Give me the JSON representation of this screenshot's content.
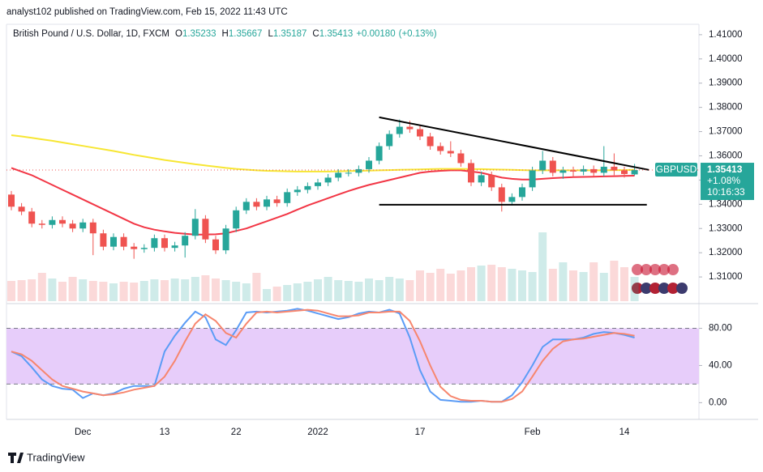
{
  "header": {
    "publisher": "analyst102 published on TradingView.com, Feb 15, 2022 11:43 UTC",
    "footer": "TradingView"
  },
  "chart_data": {
    "type": "candlestick",
    "title": "British Pound / U.S. Dollar, 1D, FXCM",
    "symbol": "GBPUSD",
    "ohlc_labels": [
      "O",
      "H",
      "L",
      "C"
    ],
    "change": "+0.00180",
    "change_pct": "(+0.13%)",
    "tag_change": "+1.08%",
    "countdown": "10:16:33",
    "categories": [
      null,
      null,
      null,
      null,
      null,
      null,
      null,
      "Dec",
      null,
      null,
      null,
      null,
      null,
      null,
      null,
      "13",
      null,
      null,
      null,
      null,
      null,
      null,
      "22",
      null,
      null,
      null,
      null,
      null,
      null,
      null,
      "2022",
      null,
      null,
      null,
      null,
      null,
      null,
      null,
      null,
      null,
      "17",
      null,
      null,
      null,
      null,
      null,
      null,
      null,
      null,
      null,
      null,
      "Feb",
      null,
      null,
      null,
      null,
      null,
      null,
      null,
      null,
      "14",
      null
    ],
    "open": [
      1.344,
      1.339,
      1.337,
      1.332,
      1.3315,
      1.3335,
      1.332,
      1.33,
      1.3325,
      1.328,
      1.3225,
      1.3265,
      1.3225,
      1.3215,
      1.322,
      1.326,
      1.322,
      1.323,
      1.327,
      1.334,
      1.3255,
      1.321,
      1.33,
      1.3375,
      1.341,
      1.339,
      1.342,
      1.3405,
      1.345,
      1.346,
      1.3475,
      1.349,
      1.351,
      1.353,
      1.353,
      1.3545,
      1.358,
      1.364,
      1.369,
      1.372,
      1.371,
      1.368,
      1.364,
      1.362,
      1.361,
      1.357,
      1.349,
      1.352,
      1.347,
      1.341,
      1.343,
      1.347,
      1.354,
      1.358,
      1.353,
      1.354,
      1.3535,
      1.3545,
      1.353,
      1.3555,
      1.354,
      1.35233
    ],
    "high": [
      1.3455,
      1.3405,
      1.3385,
      1.3335,
      1.335,
      1.335,
      1.3335,
      1.334,
      1.334,
      1.3295,
      1.328,
      1.328,
      1.324,
      1.3235,
      1.3275,
      1.3275,
      1.3245,
      1.3285,
      1.338,
      1.3355,
      1.327,
      1.3315,
      1.339,
      1.3425,
      1.3425,
      1.3435,
      1.3435,
      1.3465,
      1.3475,
      1.349,
      1.3505,
      1.3525,
      1.3545,
      1.3545,
      1.356,
      1.3595,
      1.3655,
      1.3705,
      1.375,
      1.3745,
      1.3725,
      1.3695,
      1.3655,
      1.366,
      1.3625,
      1.3585,
      1.3535,
      1.3535,
      1.3485,
      1.3445,
      1.3485,
      1.3555,
      1.362,
      1.3595,
      1.3555,
      1.3555,
      1.356,
      1.356,
      1.364,
      1.361,
      1.3555,
      1.35667
    ],
    "low": [
      1.3375,
      1.3355,
      1.3305,
      1.33,
      1.33,
      1.3305,
      1.3285,
      1.3285,
      1.319,
      1.321,
      1.321,
      1.321,
      1.3175,
      1.32,
      1.3205,
      1.3205,
      1.3205,
      1.318,
      1.3255,
      1.324,
      1.3195,
      1.3195,
      1.3285,
      1.336,
      1.3375,
      1.3375,
      1.339,
      1.339,
      1.3435,
      1.3445,
      1.346,
      1.3475,
      1.3495,
      1.3515,
      1.3515,
      1.353,
      1.3565,
      1.3625,
      1.3675,
      1.3695,
      1.3665,
      1.3625,
      1.3605,
      1.3595,
      1.3555,
      1.3475,
      1.3475,
      1.3455,
      1.337,
      1.3395,
      1.3415,
      1.3455,
      1.3525,
      1.3515,
      1.3505,
      1.351,
      1.352,
      1.3515,
      1.3515,
      1.352,
      1.351,
      1.35187
    ],
    "close": [
      1.339,
      1.337,
      1.332,
      1.3315,
      1.3335,
      1.332,
      1.33,
      1.3325,
      1.328,
      1.3225,
      1.3265,
      1.3225,
      1.3215,
      1.322,
      1.326,
      1.322,
      1.323,
      1.327,
      1.334,
      1.3255,
      1.321,
      1.33,
      1.3375,
      1.341,
      1.339,
      1.342,
      1.3405,
      1.345,
      1.346,
      1.3475,
      1.349,
      1.351,
      1.353,
      1.353,
      1.3545,
      1.358,
      1.364,
      1.369,
      1.372,
      1.371,
      1.368,
      1.364,
      1.362,
      1.361,
      1.357,
      1.349,
      1.352,
      1.347,
      1.341,
      1.343,
      1.347,
      1.354,
      1.358,
      1.353,
      1.354,
      1.3535,
      1.3545,
      1.353,
      1.3555,
      1.354,
      1.3525,
      1.35413
    ],
    "up_color": "#26a69a",
    "down_color": "#ef5350",
    "volume": [
      25,
      26,
      27,
      35,
      28,
      24,
      30,
      27,
      25,
      24,
      22,
      24,
      23,
      25,
      27,
      26,
      28,
      27,
      30,
      32,
      28,
      26,
      24,
      22,
      35,
      15,
      18,
      20,
      22,
      24,
      27,
      30,
      26,
      25,
      24,
      28,
      26,
      30,
      28,
      26,
      38,
      35,
      40,
      34,
      38,
      42,
      44,
      45,
      42,
      40,
      38,
      36,
      85,
      40,
      48,
      38,
      36,
      48,
      35,
      50,
      42,
      30
    ],
    "moving_averages": [
      {
        "color": "#f23645",
        "values": [
          1.355,
          1.3535,
          1.352,
          1.35,
          1.348,
          1.346,
          1.344,
          1.342,
          1.34,
          1.338,
          1.336,
          1.334,
          1.332,
          1.3305,
          1.3295,
          1.3288,
          1.3282,
          1.3278,
          1.3275,
          1.3275,
          1.3276,
          1.328,
          1.329,
          1.33,
          1.3315,
          1.333,
          1.3345,
          1.336,
          1.3378,
          1.3395,
          1.341,
          1.3425,
          1.344,
          1.3455,
          1.3468,
          1.348,
          1.349,
          1.35,
          1.351,
          1.352,
          1.353,
          1.3535,
          1.3538,
          1.354,
          1.354,
          1.3535,
          1.353,
          1.352,
          1.351,
          1.3505,
          1.3502,
          1.3502,
          1.3505,
          1.3508,
          1.351,
          1.3512,
          1.3513,
          1.3514,
          1.3515,
          1.3516,
          1.3517,
          1.3518
        ]
      },
      {
        "color": "#f7e633",
        "values": [
          1.3685,
          1.368,
          1.3674,
          1.3668,
          1.3662,
          1.3655,
          1.3648,
          1.3641,
          1.3634,
          1.3627,
          1.362,
          1.3612,
          1.3604,
          1.3597,
          1.359,
          1.3583,
          1.3577,
          1.3571,
          1.3565,
          1.356,
          1.3555,
          1.355,
          1.3546,
          1.3543,
          1.354,
          1.3538,
          1.3537,
          1.3536,
          1.3535,
          1.3535,
          1.3535,
          1.3535,
          1.3536,
          1.3537,
          1.3538,
          1.3539,
          1.354,
          1.3541,
          1.3542,
          1.3543,
          1.3544,
          1.3545,
          1.3546,
          1.3546,
          1.3546,
          1.3545,
          1.3545,
          1.3544,
          1.3543,
          1.3542,
          1.3541,
          1.354,
          1.354,
          1.354,
          1.354,
          1.354,
          1.354,
          1.354,
          1.354,
          1.3541,
          1.3541,
          1.3542
        ]
      }
    ],
    "trendlines": [
      {
        "color": "#000000",
        "x": [
          36,
          62.4
        ],
        "y": [
          1.3759,
          1.3542
        ]
      },
      {
        "color": "#000000",
        "x": [
          36,
          62.2
        ],
        "y": [
          1.3398,
          1.3398
        ]
      }
    ],
    "ylim": [
      1.3,
      1.4143
    ],
    "yticks": [
      {
        "value": 1.31,
        "label": "1.31000"
      },
      {
        "value": 1.32,
        "label": "1.32000"
      },
      {
        "value": 1.33,
        "label": "1.33000"
      },
      {
        "value": 1.34,
        "label": "1.34000"
      },
      {
        "value": 1.35,
        "label": "1.35000"
      },
      {
        "value": 1.36,
        "label": "1.36000"
      },
      {
        "value": 1.37,
        "label": "1.37000"
      },
      {
        "value": 1.38,
        "label": "1.38000"
      },
      {
        "value": 1.39,
        "label": "1.39000"
      },
      {
        "value": 1.4,
        "label": "1.40000"
      },
      {
        "value": 1.41,
        "label": "1.41000"
      }
    ],
    "oscillator": {
      "type": "line",
      "ylim": [
        -18,
        104
      ],
      "yticks": [
        {
          "value": 80,
          "label": "80.00"
        },
        {
          "value": 40,
          "label": "40.00"
        },
        {
          "value": 0,
          "label": "0.00"
        }
      ],
      "band": [
        20,
        80
      ],
      "band_color": "#e7cdfa",
      "series": [
        {
          "color": "#5b9cf6",
          "values": [
            55,
            50,
            38,
            25,
            18,
            15,
            14,
            5,
            10,
            8,
            10,
            15,
            18,
            18,
            18,
            55,
            72,
            86,
            98,
            92,
            68,
            62,
            78,
            97,
            98,
            97,
            98,
            99,
            101,
            99,
            96,
            93,
            90,
            92,
            96,
            98,
            97,
            100,
            96,
            70,
            35,
            12,
            3,
            2,
            1,
            1,
            2,
            1,
            1,
            8,
            22,
            40,
            60,
            68,
            68,
            68,
            70,
            74,
            76,
            75,
            73,
            70
          ]
        },
        {
          "color": "#f7866e",
          "values": [
            55,
            52,
            45,
            35,
            25,
            18,
            15,
            12,
            10,
            8,
            9,
            11,
            14,
            16,
            18,
            28,
            45,
            66,
            85,
            95,
            88,
            75,
            70,
            85,
            97,
            98,
            97,
            98,
            99,
            100,
            99,
            96,
            93,
            93,
            94,
            97,
            97,
            98,
            98,
            88,
            66,
            40,
            17,
            7,
            3,
            2,
            2,
            1,
            1,
            4,
            12,
            28,
            45,
            58,
            66,
            68,
            69,
            71,
            73,
            75,
            74,
            72
          ]
        }
      ]
    }
  }
}
